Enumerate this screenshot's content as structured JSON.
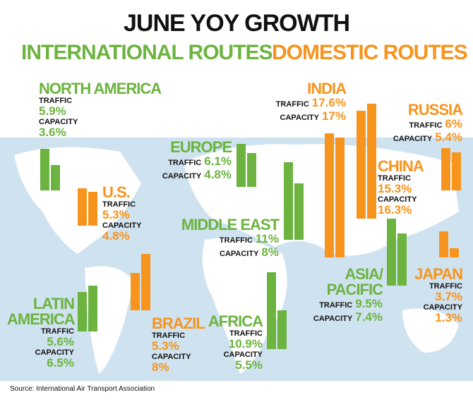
{
  "title": "JUNE YOY GROWTH",
  "groups": [
    {
      "name": "INTERNATIONAL ROUTES",
      "color": "#6cb33f"
    },
    {
      "name": "DOMESTIC ROUTES",
      "color": "#f7941d"
    }
  ],
  "measures": [
    "TRAFFIC",
    "CAPACITY"
  ],
  "regions": [
    {
      "name": "NORTH AMERICA",
      "color": "#6cb33f",
      "values": [
        5.9,
        3.6
      ],
      "value_labels": [
        "5.9%",
        "3.6%"
      ]
    },
    {
      "name": "U.S.",
      "color": "#f7941d",
      "values": [
        5.3,
        4.8
      ],
      "value_labels": [
        "5.3%",
        "4.8%"
      ]
    },
    {
      "name": "EUROPE",
      "color": "#6cb33f",
      "values": [
        6.1,
        4.8
      ],
      "value_labels": [
        "6.1%",
        "4.8%"
      ]
    },
    {
      "name": "MIDDLE EAST",
      "color": "#6cb33f",
      "values": [
        11,
        8
      ],
      "value_labels": [
        "11%",
        "8%"
      ]
    },
    {
      "name": "INDIA",
      "color": "#f7941d",
      "values": [
        17.6,
        17
      ],
      "value_labels": [
        "17.6%",
        "17%"
      ]
    },
    {
      "name": "RUSSIA",
      "color": "#f7941d",
      "values": [
        6,
        5.4
      ],
      "value_labels": [
        "6%",
        "5.4%"
      ]
    },
    {
      "name": "CHINA",
      "color": "#f7941d",
      "values": [
        15.3,
        16.3
      ],
      "value_labels": [
        "15.3%",
        "16.3%"
      ]
    },
    {
      "name": "ASIA/ PACIFIC",
      "color": "#6cb33f",
      "values": [
        9.5,
        7.4
      ],
      "value_labels": [
        "9.5%",
        "7.4%"
      ]
    },
    {
      "name": "JAPAN",
      "color": "#f7941d",
      "values": [
        3.7,
        1.3
      ],
      "value_labels": [
        "3.7%",
        "1.3%"
      ]
    },
    {
      "name": "LATIN AMERICA",
      "color": "#6cb33f",
      "values": [
        5.6,
        6.5
      ],
      "value_labels": [
        "5.6%",
        "6.5%"
      ]
    },
    {
      "name": "BRAZIL",
      "color": "#f7941d",
      "values": [
        5.3,
        8
      ],
      "value_labels": [
        "5.3%",
        "8%"
      ]
    },
    {
      "name": "AFRICA",
      "color": "#6cb33f",
      "values": [
        10.9,
        5.5
      ],
      "value_labels": [
        "10.9%",
        "5.5%"
      ]
    }
  ],
  "source": "Source: International Air Transport Association"
}
